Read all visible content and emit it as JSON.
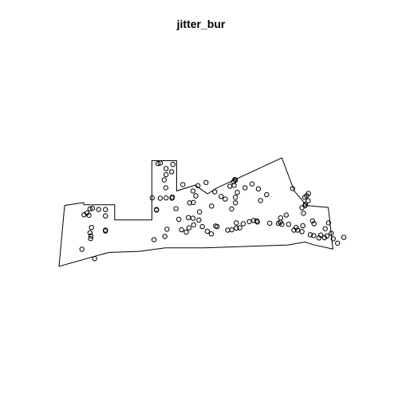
{
  "chart_data": {
    "type": "scatter",
    "title": "jitter_bur",
    "xlabel": "",
    "ylabel": "",
    "axes": false,
    "grid": false,
    "legend": "none",
    "marker": "open-circle",
    "colors": {
      "points": "#000000",
      "outline": "#000000",
      "background": "#ffffff"
    },
    "xlim": [
      0,
      100
    ],
    "ylim": [
      0,
      50
    ],
    "window_polygon": [
      [
        0,
        0
      ],
      [
        1.8,
        21
      ],
      [
        8,
        22
      ],
      [
        8,
        21.2
      ],
      [
        18,
        21.2
      ],
      [
        18,
        16
      ],
      [
        30,
        16
      ],
      [
        30,
        36.4
      ],
      [
        38,
        36.4
      ],
      [
        38,
        26
      ],
      [
        44,
        28
      ],
      [
        48,
        25
      ],
      [
        51,
        27
      ],
      [
        72,
        37.4
      ],
      [
        76,
        26
      ],
      [
        80,
        21
      ],
      [
        86,
        20.4
      ],
      [
        87,
        20.3
      ],
      [
        88.5,
        6
      ],
      [
        82,
        7.5
      ],
      [
        79.5,
        8.4
      ],
      [
        74,
        7.4
      ],
      [
        47,
        6.4
      ],
      [
        34.3,
        6.4
      ],
      [
        26,
        5.2
      ],
      [
        16,
        4.8
      ]
    ],
    "points": [
      [
        7.4,
        5.9
      ],
      [
        11.5,
        2.7
      ],
      [
        10.2,
        9.6
      ],
      [
        10.3,
        10.5
      ],
      [
        10.0,
        11.6
      ],
      [
        10.5,
        13.4
      ],
      [
        9.7,
        17.6
      ],
      [
        9.0,
        18.4
      ],
      [
        10.0,
        19.8
      ],
      [
        8.1,
        17.8
      ],
      [
        10.8,
        20.0
      ],
      [
        12.8,
        19.6
      ],
      [
        15.0,
        17.4
      ],
      [
        15.0,
        19.6
      ],
      [
        15.0,
        12.2
      ],
      [
        15.0,
        12.5
      ],
      [
        30.1,
        23.6
      ],
      [
        34.0,
        29.8
      ],
      [
        34.6,
        31.6
      ],
      [
        34.6,
        33.7
      ],
      [
        32.7,
        35.6
      ],
      [
        32.0,
        35.4
      ],
      [
        36.8,
        35.1
      ],
      [
        36.4,
        32.6
      ],
      [
        34.5,
        27.1
      ],
      [
        34.6,
        23.6
      ],
      [
        32.7,
        23.5
      ],
      [
        36.5,
        23.5
      ],
      [
        36.6,
        23.9
      ],
      [
        40.0,
        28.2
      ],
      [
        43.3,
        26.0
      ],
      [
        44.2,
        24.3
      ],
      [
        43.4,
        22.0
      ],
      [
        42.2,
        21.9
      ],
      [
        37.8,
        19.9
      ],
      [
        38.7,
        16.2
      ],
      [
        31.5,
        19.4
      ],
      [
        31.5,
        19.6
      ],
      [
        30.7,
        9.2
      ],
      [
        34.2,
        10.3
      ],
      [
        34.9,
        12.8
      ],
      [
        39.6,
        12.6
      ],
      [
        41.1,
        11.8
      ],
      [
        41.8,
        16.8
      ],
      [
        43.3,
        16.6
      ],
      [
        42.0,
        13.3
      ],
      [
        43.5,
        14.3
      ],
      [
        45.4,
        18.8
      ],
      [
        45.2,
        16.0
      ],
      [
        46.3,
        13.7
      ],
      [
        47.9,
        12.1
      ],
      [
        49.2,
        11.2
      ],
      [
        50.6,
        13.9
      ],
      [
        51.1,
        13.7
      ],
      [
        54.5,
        12.5
      ],
      [
        55.8,
        12.6
      ],
      [
        57.3,
        13.2
      ],
      [
        58.4,
        13.3
      ],
      [
        57.3,
        15.0
      ],
      [
        59.5,
        14.7
      ],
      [
        61.5,
        15.4
      ],
      [
        62.9,
        15.8
      ],
      [
        63.9,
        15.7
      ],
      [
        64.1,
        15.3
      ],
      [
        68.1,
        14.9
      ],
      [
        70.9,
        14.8
      ],
      [
        74.2,
        14.5
      ],
      [
        49.3,
        20.8
      ],
      [
        44.9,
        27.8
      ],
      [
        47.5,
        28.9
      ],
      [
        50.3,
        25.7
      ],
      [
        52.4,
        24.1
      ],
      [
        53.7,
        23.2
      ],
      [
        55.8,
        19.8
      ],
      [
        57.0,
        21.9
      ],
      [
        57.0,
        23.8
      ],
      [
        57.6,
        25.5
      ],
      [
        56.6,
        27.9
      ],
      [
        56.8,
        29.9
      ],
      [
        55.2,
        27.6
      ],
      [
        56.4,
        29.2
      ],
      [
        57.0,
        29.7
      ],
      [
        60.1,
        27.1
      ],
      [
        62.4,
        28.4
      ],
      [
        64.4,
        26.7
      ],
      [
        65.1,
        22.7
      ],
      [
        67.1,
        24.7
      ],
      [
        71.6,
        16.7
      ],
      [
        73.4,
        17.7
      ],
      [
        75.9,
        12.5
      ],
      [
        76.6,
        13.4
      ],
      [
        77.1,
        12.5
      ],
      [
        78.5,
        12.0
      ],
      [
        78.8,
        14.0
      ],
      [
        79.0,
        18.3
      ],
      [
        78.5,
        20.2
      ],
      [
        79.5,
        20.9
      ],
      [
        79.6,
        21.4
      ],
      [
        80.5,
        22.6
      ],
      [
        79.4,
        23.8
      ],
      [
        80.0,
        24.3
      ],
      [
        80.6,
        25.1
      ],
      [
        81.9,
        15.7
      ],
      [
        82.4,
        14.7
      ],
      [
        81.2,
        10.9
      ],
      [
        82.3,
        10.6
      ],
      [
        84.6,
        10.8
      ],
      [
        85.8,
        9.9
      ],
      [
        86.0,
        13.0
      ],
      [
        87.1,
        15.0
      ],
      [
        88.0,
        11.4
      ],
      [
        88.6,
        9.5
      ],
      [
        90.0,
        8.0
      ],
      [
        92.0,
        10.0
      ],
      [
        86.6,
        10.5
      ],
      [
        84.0,
        9.8
      ],
      [
        71.5,
        15.2
      ],
      [
        72.0,
        14.5
      ],
      [
        75.5,
        26.8
      ]
    ]
  }
}
